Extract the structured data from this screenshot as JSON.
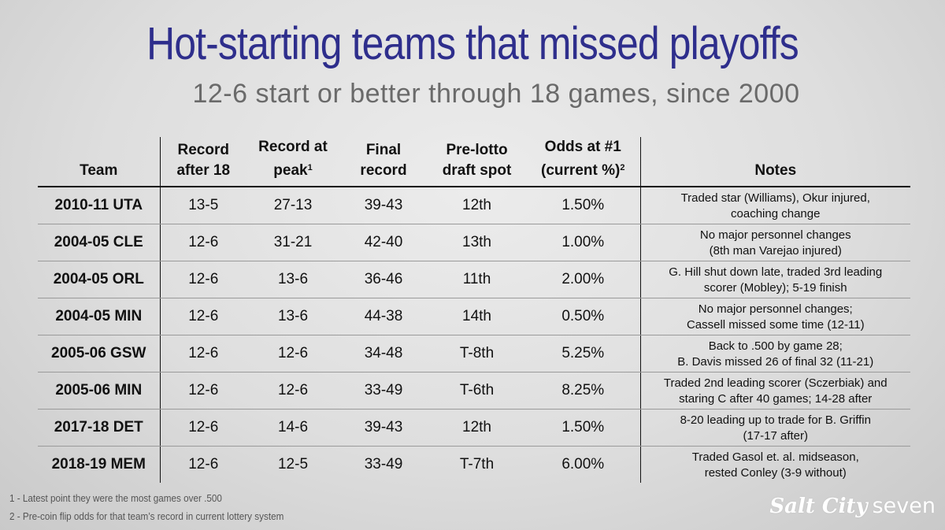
{
  "title": "Hot-starting teams that missed playoffs",
  "subtitle": "12-6 start or better through 18 games, since 2000",
  "headers": {
    "team": "Team",
    "record18_l1": "Record",
    "record18_l2": "after 18",
    "peak_l1": "Record at",
    "peak_l2": "peak",
    "peak_sup": "1",
    "final_l1": "Final",
    "final_l2": "record",
    "prelotto_l1": "Pre-lotto",
    "prelotto_l2": "draft spot",
    "odds_l1": "Odds at #1",
    "odds_l2": "(current %)",
    "odds_sup": "2",
    "notes": "Notes"
  },
  "rows": [
    {
      "team": "2010-11 UTA",
      "after18": "13-5",
      "peak": "27-13",
      "final": "39-43",
      "spot": "12th",
      "odds": "1.50%",
      "note1": "Traded star (Williams), Okur injured,",
      "note2": "coaching change"
    },
    {
      "team": "2004-05 CLE",
      "after18": "12-6",
      "peak": "31-21",
      "final": "42-40",
      "spot": "13th",
      "odds": "1.00%",
      "note1": "No major personnel changes",
      "note2": "(8th man Varejao injured)"
    },
    {
      "team": "2004-05 ORL",
      "after18": "12-6",
      "peak": "13-6",
      "final": "36-46",
      "spot": "11th",
      "odds": "2.00%",
      "note1": "G. Hill shut down late, traded 3rd leading",
      "note2": "scorer (Mobley); 5-19 finish"
    },
    {
      "team": "2004-05 MIN",
      "after18": "12-6",
      "peak": "13-6",
      "final": "44-38",
      "spot": "14th",
      "odds": "0.50%",
      "note1": "No major personnel changes;",
      "note2": "Cassell missed some time (12-11)"
    },
    {
      "team": "2005-06 GSW",
      "after18": "12-6",
      "peak": "12-6",
      "final": "34-48",
      "spot": "T-8th",
      "odds": "5.25%",
      "note1": "Back to .500 by game 28;",
      "note2": "B. Davis missed 26 of final 32 (11-21)"
    },
    {
      "team": "2005-06 MIN",
      "after18": "12-6",
      "peak": "12-6",
      "final": "33-49",
      "spot": "T-6th",
      "odds": "8.25%",
      "note1": "Traded 2nd leading scorer (Sczerbiak) and",
      "note2": "staring C after 40 games; 14-28 after"
    },
    {
      "team": "2017-18 DET",
      "after18": "12-6",
      "peak": "14-6",
      "final": "39-43",
      "spot": "12th",
      "odds": "1.50%",
      "note1": "8-20 leading up to trade for B. Griffin",
      "note2": "(17-17 after)"
    },
    {
      "team": "2018-19 MEM",
      "after18": "12-6",
      "peak": "12-5",
      "final": "33-49",
      "spot": "T-7th",
      "odds": "6.00%",
      "note1": "Traded Gasol et. al. midseason,",
      "note2": "rested Conley (3-9 without)"
    }
  ],
  "footnotes": [
    "1 - Latest point they were the most games over .500",
    "2 - Pre-coin flip odds for that team’s record in current lottery system"
  ],
  "logo": {
    "script": "Salt City",
    "plain": "seven"
  },
  "colors": {
    "title": "#2e2e8c",
    "subtitle": "#6a6a6a",
    "logo": "#ffffff"
  }
}
